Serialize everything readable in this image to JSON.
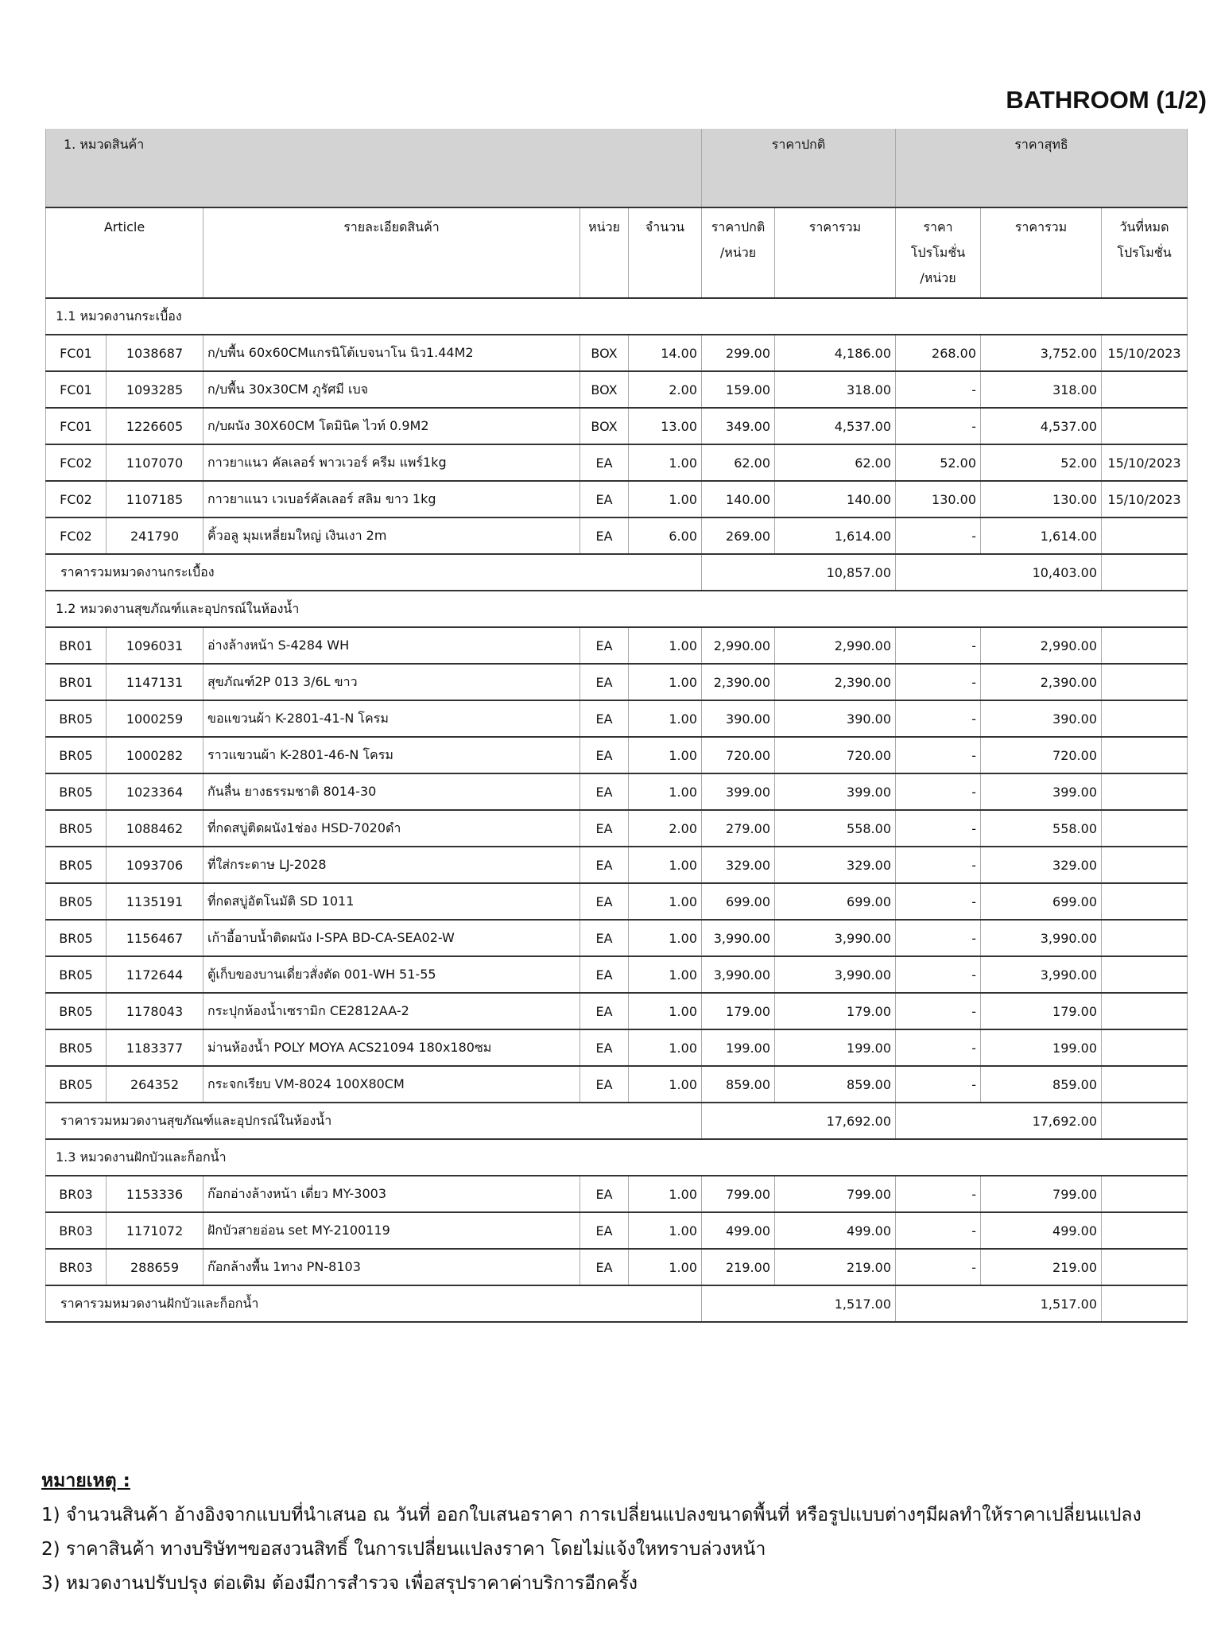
{
  "title": "BATHROOM (1/2)",
  "table": {
    "header_groups": {
      "category": "1. หมวดสินค้า",
      "regular": "ราคาปกติ",
      "net": "ราคาสุทธิ"
    },
    "columns": [
      [
        "Article"
      ],
      [
        "รายละเอียดสินค้า"
      ],
      [
        "หน่วย"
      ],
      [
        "จำนวน"
      ],
      [
        "ราคาปกติ",
        "/หน่วย"
      ],
      [
        "ราคารวม"
      ],
      [
        "ราคา",
        "โปรโมชั่น",
        "/หน่วย"
      ],
      [
        "ราคารวม"
      ],
      [
        "วันที่หมด",
        "โปรโมชั่น"
      ]
    ],
    "sections": [
      {
        "title": "1.1 หมวดงานกระเบื้อง",
        "rows": [
          [
            "FC01",
            "1038687",
            "ก/บพื้น 60x60CMแกรนิโต้เบจนาโน นิว1.44M2",
            "BOX",
            "14.00",
            "299.00",
            "4,186.00",
            "268.00",
            "3,752.00",
            "15/10/2023"
          ],
          [
            "FC01",
            "1093285",
            "ก/บพื้น 30x30CM ภูรัศมี เบจ",
            "BOX",
            "2.00",
            "159.00",
            "318.00",
            "-",
            "318.00",
            null
          ],
          [
            "FC01",
            "1226605",
            "ก/บผนัง 30X60CM โดมินิค ไวท์ 0.9M2",
            "BOX",
            "13.00",
            "349.00",
            "4,537.00",
            "-",
            "4,537.00",
            null
          ],
          [
            "FC02",
            "1107070",
            "กาวยาแนว คัลเลอร์ พาวเวอร์ ครีม แพร์1kg",
            "EA",
            "1.00",
            "62.00",
            "62.00",
            "52.00",
            "52.00",
            "15/10/2023"
          ],
          [
            "FC02",
            "1107185",
            "กาวยาแนว เวเบอร์คัลเลอร์ สลิม ขาว 1kg",
            "EA",
            "1.00",
            "140.00",
            "140.00",
            "130.00",
            "130.00",
            "15/10/2023"
          ],
          [
            "FC02",
            "241790",
            "คิ้วอลู มุมเหลี่ยมใหญ่ เงินเงา 2m",
            "EA",
            "6.00",
            "269.00",
            "1,614.00",
            "-",
            "1,614.00",
            null
          ]
        ],
        "subtotal": {
          "label": "ราคารวมหมวดงานกระเบื้อง",
          "regular": "10,857.00",
          "net": "10,403.00"
        }
      },
      {
        "title": "1.2 หมวดงานสุขภัณฑ์และอุปกรณ์ในห้องน้ำ",
        "rows": [
          [
            "BR01",
            "1096031",
            "อ่างล้างหน้า  S-4284 WH",
            "EA",
            "1.00",
            "2,990.00",
            "2,990.00",
            "-",
            "2,990.00",
            null
          ],
          [
            "BR01",
            "1147131",
            "สุขภัณฑ์2P 013 3/6L ขาว",
            "EA",
            "1.00",
            "2,390.00",
            "2,390.00",
            "-",
            "2,390.00",
            null
          ],
          [
            "BR05",
            "1000259",
            "ขอแขวนผ้า K-2801-41-N โครม",
            "EA",
            "1.00",
            "390.00",
            "390.00",
            "-",
            "390.00",
            null
          ],
          [
            "BR05",
            "1000282",
            "ราวแขวนผ้า K-2801-46-N โครม",
            "EA",
            "1.00",
            "720.00",
            "720.00",
            "-",
            "720.00",
            null
          ],
          [
            "BR05",
            "1023364",
            "กันลื่น ยางธรรมชาติ 8014-30",
            "EA",
            "1.00",
            "399.00",
            "399.00",
            "-",
            "399.00",
            null
          ],
          [
            "BR05",
            "1088462",
            "ที่กดสบู่ติดผนัง1ช่อง HSD-7020ดำ",
            "EA",
            "2.00",
            "279.00",
            "558.00",
            "-",
            "558.00",
            null
          ],
          [
            "BR05",
            "1093706",
            "ที่ใส่กระดาษ LJ-2028",
            "EA",
            "1.00",
            "329.00",
            "329.00",
            "-",
            "329.00",
            null
          ],
          [
            "BR05",
            "1135191",
            "ที่กดสบู่อัตโนมัติ SD 1011",
            "EA",
            "1.00",
            "699.00",
            "699.00",
            "-",
            "699.00",
            null
          ],
          [
            "BR05",
            "1156467",
            "เก้าอี้อาบน้ำติดผนัง I-SPA BD-CA-SEA02-W",
            "EA",
            "1.00",
            "3,990.00",
            "3,990.00",
            "-",
            "3,990.00",
            null
          ],
          [
            "BR05",
            "1172644",
            "ตู้เก็บของบานเดี่ยวสั่งตัด 001-WH 51-55",
            "EA",
            "1.00",
            "3,990.00",
            "3,990.00",
            "-",
            "3,990.00",
            null
          ],
          [
            "BR05",
            "1178043",
            "กระปุกห้องน้ำเซรามิก CE2812AA-2",
            "EA",
            "1.00",
            "179.00",
            "179.00",
            "-",
            "179.00",
            null
          ],
          [
            "BR05",
            "1183377",
            "ม่านห้องน้ำ POLY MOYA ACS21094 180x180ซม",
            "EA",
            "1.00",
            "199.00",
            "199.00",
            "-",
            "199.00",
            null
          ],
          [
            "BR05",
            "264352",
            "กระจกเรียบ VM-8024 100X80CM",
            "EA",
            "1.00",
            "859.00",
            "859.00",
            "-",
            "859.00",
            null
          ]
        ],
        "subtotal": {
          "label": "ราคารวมหมวดงานสุขภัณฑ์และอุปกรณ์ในห้องน้ำ",
          "regular": "17,692.00",
          "net": "17,692.00"
        }
      },
      {
        "title": "1.3 หมวดงานฝักบัวและก็อกน้ำ",
        "rows": [
          [
            "BR03",
            "1153336",
            "ก๊อกอ่างล้างหน้า เดี่ยว MY-3003",
            "EA",
            "1.00",
            "799.00",
            "799.00",
            "-",
            "799.00",
            null
          ],
          [
            "BR03",
            "1171072",
            "ฝักบัวสายอ่อน set MY-2100119",
            "EA",
            "1.00",
            "499.00",
            "499.00",
            "-",
            "499.00",
            null
          ],
          [
            "BR03",
            "288659",
            "ก๊อกล้างพื้น 1ทาง PN-8103",
            "EA",
            "1.00",
            "219.00",
            "219.00",
            "-",
            "219.00",
            null
          ]
        ],
        "subtotal": {
          "label": "ราคารวมหมวดงานฝักบัวและก็อกน้ำ",
          "regular": "1,517.00",
          "net": "1,517.00"
        }
      }
    ]
  },
  "notes": {
    "heading": "หมายเหตุ :",
    "items": [
      "1) จำนวนสินค้า อ้างอิงจากแบบที่นำเสนอ ณ วันที่ ออกใบเสนอราคา การเปลี่ยนแปลงขนาดพื้นที่ หรือรูปแบบต่างๆมีผลทำให้ราคาเปลี่ยนแปลง",
      "2) ราคาสินค้า ทางบริษัทฯขอสงวนสิทธิ์ ในการเปลี่ยนแปลงราคา โดยไม่แจ้งใหทราบล่วงหน้า",
      "3) หมวดงานปรับปรุง ต่อเติม ต้องมีการสำรวจ เพื่อสรุปราคาค่าบริการอีกครั้ง"
    ]
  }
}
